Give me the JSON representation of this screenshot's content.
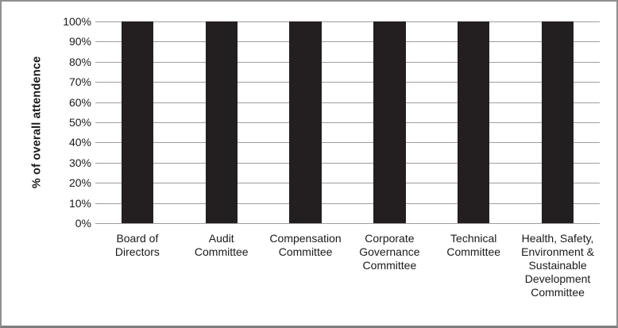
{
  "chart_data": {
    "type": "bar",
    "title": "",
    "ylabel": "% of overall attendence",
    "xlabel": "",
    "categories": [
      "Board of\nDirectors",
      "Audit\nCommittee",
      "Compensation\nCommittee",
      "Corporate\nGovernance\nCommittee",
      "Technical\nCommittee",
      "Health, Safety,\nEnvironment &\nSustainable\nDevelopment\nCommittee"
    ],
    "values": [
      100,
      100,
      100,
      100,
      100,
      100
    ],
    "unit": "%",
    "ylim": [
      0,
      100
    ],
    "ytick_step": 10,
    "yticks": [
      "100%",
      "90%",
      "80%",
      "70%",
      "60%",
      "50%",
      "40%",
      "30%",
      "20%",
      "10%",
      "0%"
    ],
    "grid": "horizontal",
    "legend": "none",
    "bar_color": "#231f20",
    "gridline_color": "#9e9e9e",
    "frame_border_color": "#8f8f8f",
    "text_color": "#1a1a1a"
  }
}
